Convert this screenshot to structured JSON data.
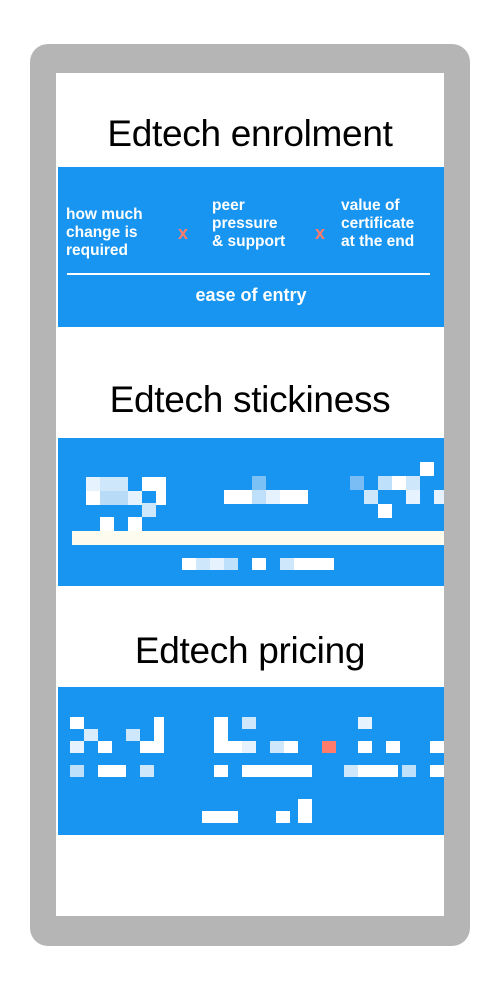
{
  "sections": [
    {
      "title": "Edtech enrolment",
      "factors": [
        "how much\nchange is\nrequired",
        "peer\npressure\n& support",
        "value of\ncertificate\nat the end"
      ],
      "operator": "x",
      "result": "ease of entry",
      "colors": {
        "panel": "#1795f0",
        "text": "#ffffff",
        "operator": "#ff7b6b"
      }
    },
    {
      "title": "Edtech stickiness",
      "content_state": "pixelated / obscured"
    },
    {
      "title": "Edtech pricing",
      "content_state": "pixelated / obscured"
    }
  ],
  "frame": {
    "colors": {
      "bezel": "#b5b5b5",
      "screen": "#ffffff"
    }
  }
}
